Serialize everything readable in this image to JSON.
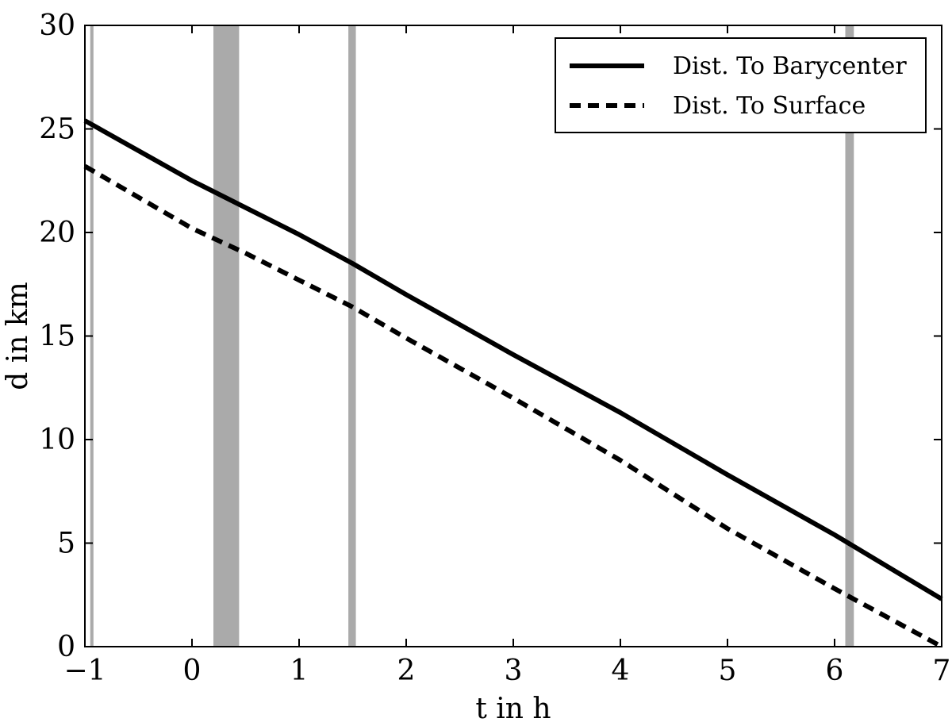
{
  "chart_data": {
    "type": "line",
    "xlabel": "t in h",
    "ylabel": "d in km",
    "xlim": [
      -1,
      7
    ],
    "ylim": [
      0,
      30
    ],
    "xticks": [
      -1,
      0,
      1,
      2,
      3,
      4,
      5,
      6,
      7
    ],
    "yticks": [
      0,
      5,
      10,
      15,
      20,
      25,
      30
    ],
    "xtick_labels": [
      "−1",
      "0",
      "1",
      "2",
      "3",
      "4",
      "5",
      "6",
      "7"
    ],
    "ytick_labels": [
      "0",
      "5",
      "10",
      "15",
      "20",
      "25",
      "30"
    ],
    "grid": false,
    "legend_position": "top-right",
    "shaded_intervals": [
      {
        "start": -0.95,
        "end": -0.92
      },
      {
        "start": 0.2,
        "end": 0.44
      },
      {
        "start": 1.46,
        "end": 1.53
      },
      {
        "start": 6.1,
        "end": 6.18
      }
    ],
    "shade_color": "#aaaaaa",
    "series": [
      {
        "name": "Dist. To Barycenter",
        "style": "solid",
        "color": "#000000",
        "x": [
          -1,
          0,
          0.5,
          1,
          1.5,
          2,
          3,
          4,
          5,
          6,
          7
        ],
        "y": [
          25.4,
          22.5,
          21.2,
          19.9,
          18.5,
          17.0,
          14.1,
          11.3,
          8.3,
          5.4,
          2.3
        ]
      },
      {
        "name": "Dist. To Surface",
        "style": "dashed",
        "color": "#000000",
        "x": [
          -1,
          0,
          0.5,
          1,
          1.5,
          2,
          3,
          4,
          5,
          6,
          7
        ],
        "y": [
          23.2,
          20.2,
          19.0,
          17.7,
          16.4,
          14.9,
          12.0,
          9.0,
          5.7,
          2.8,
          0.0
        ]
      }
    ]
  }
}
